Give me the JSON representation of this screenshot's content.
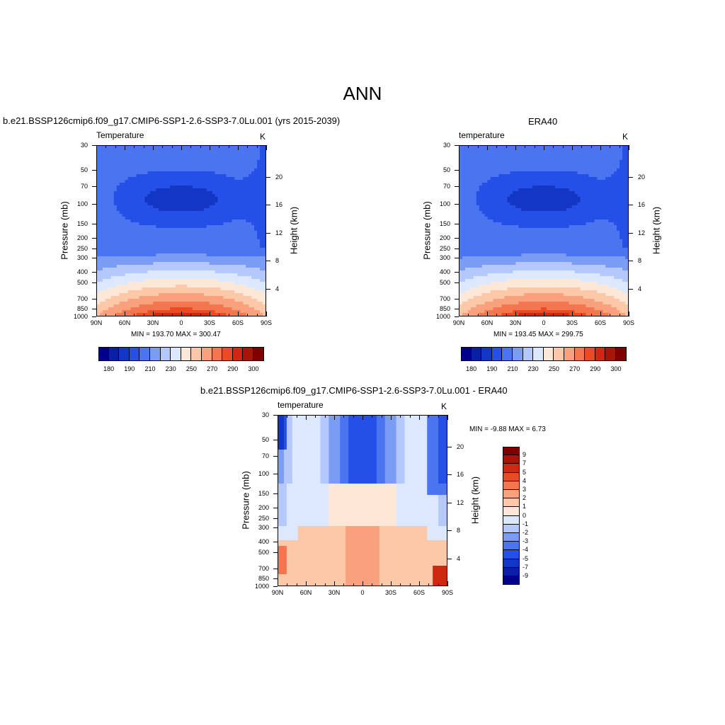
{
  "main_title": "ANN",
  "colors": {
    "temp_palette": [
      "#00008b",
      "#0a1fa8",
      "#1436c4",
      "#2450e8",
      "#4a74f0",
      "#7a9cf5",
      "#b4c8fb",
      "#dce8fe",
      "#fde8d8",
      "#fcc8a8",
      "#f9a07c",
      "#f47650",
      "#ec4a24",
      "#d02810",
      "#a81408",
      "#800000"
    ],
    "diff_palette": [
      "#00008b",
      "#0a1fa8",
      "#1436c4",
      "#2450e8",
      "#4a74f0",
      "#7a9cf5",
      "#b4c8fb",
      "#dce8fe",
      "#ffffff",
      "#fde8d8",
      "#fcc8a8",
      "#f9a07c",
      "#f47650",
      "#ec4a24",
      "#d02810",
      "#a81408",
      "#800000"
    ]
  },
  "chart_data": [
    {
      "type": "heatmap",
      "title": "b.e21.BSSP126cmip6.f09_g17.CMIP6-SSP1-2.6-SSP3-7.0Lu.001 (yrs 2015-2039)",
      "subtitle": "Temperature",
      "units": "K",
      "xlabel": "",
      "ylabel": "Pressure (mb)",
      "ylabel_right": "Height (km)",
      "x_ticks": [
        "90N",
        "60N",
        "30N",
        "0",
        "30S",
        "60S",
        "90S"
      ],
      "y_ticks": [
        "30",
        "50",
        "70",
        "100",
        "150",
        "200",
        "250",
        "300",
        "400",
        "500",
        "700",
        "850",
        "1000"
      ],
      "y_ticks_right": [
        "20",
        "16",
        "12",
        "8",
        "4"
      ],
      "minmax": "MIN = 193.70  MAX = 300.47",
      "colorbar_labels": [
        "180",
        "190",
        "210",
        "230",
        "250",
        "270",
        "290",
        "300"
      ],
      "value_range": [
        193.7,
        300.47
      ]
    },
    {
      "type": "heatmap",
      "title": "ERA40",
      "subtitle": "temperature",
      "units": "K",
      "xlabel": "",
      "ylabel": "Pressure (mb)",
      "ylabel_right": "Height (km)",
      "x_ticks": [
        "90N",
        "60N",
        "30N",
        "0",
        "30S",
        "60S",
        "90S"
      ],
      "y_ticks": [
        "30",
        "50",
        "70",
        "100",
        "150",
        "200",
        "250",
        "300",
        "400",
        "500",
        "700",
        "850",
        "1000"
      ],
      "y_ticks_right": [
        "20",
        "16",
        "12",
        "8",
        "4"
      ],
      "minmax": "MIN = 193.45  MAX = 299.75",
      "colorbar_labels": [
        "180",
        "190",
        "210",
        "230",
        "250",
        "270",
        "290",
        "300"
      ],
      "value_range": [
        193.45,
        299.75
      ]
    },
    {
      "type": "heatmap",
      "title": "b.e21.BSSP126cmip6.f09_g17.CMIP6-SSP1-2.6-SSP3-7.0Lu.001 - ERA40",
      "subtitle": "temperature",
      "units": "K",
      "xlabel": "",
      "ylabel": "Pressure (mb)",
      "ylabel_right": "Height (km)",
      "x_ticks": [
        "90N",
        "60N",
        "30N",
        "0",
        "30S",
        "60S",
        "90S"
      ],
      "y_ticks": [
        "30",
        "50",
        "70",
        "100",
        "150",
        "200",
        "250",
        "300",
        "400",
        "500",
        "700",
        "850",
        "1000"
      ],
      "y_ticks_right": [
        "20",
        "16",
        "12",
        "8",
        "4"
      ],
      "minmax": "MIN =  -9.88  MAX =   6.73",
      "colorbar_labels": [
        "9",
        "7",
        "5",
        "4",
        "3",
        "2",
        "1",
        "0",
        "-1",
        "-2",
        "-3",
        "-4",
        "-5",
        "-7",
        "-9"
      ],
      "value_range": [
        -9.88,
        6.73
      ]
    }
  ]
}
